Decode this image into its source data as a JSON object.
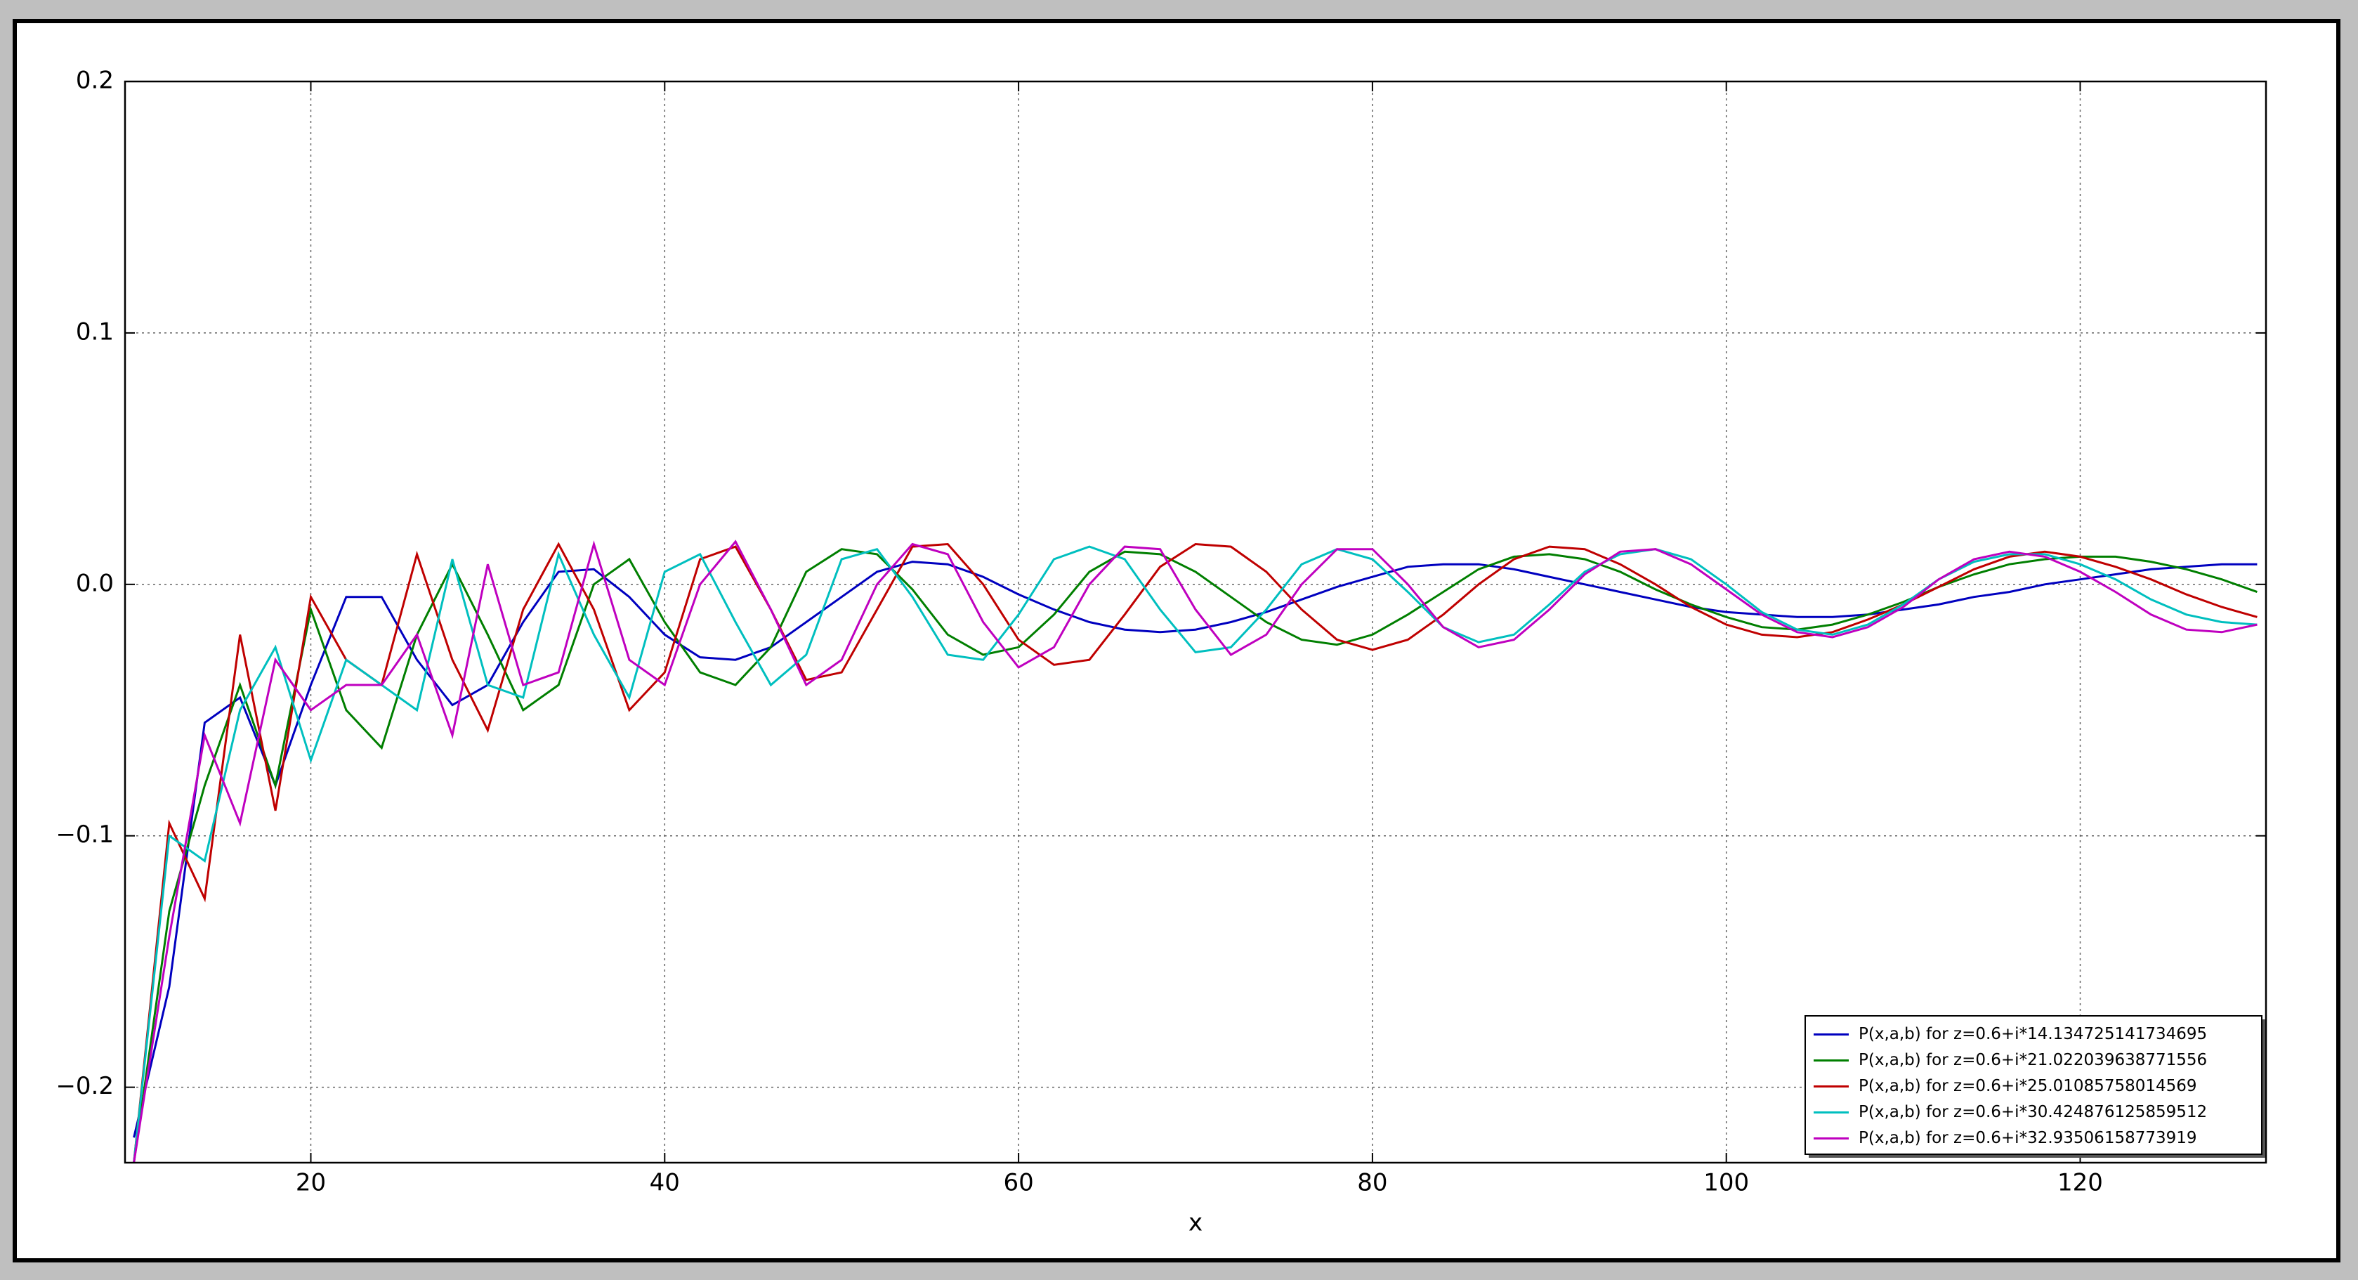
{
  "chart_data": {
    "type": "line",
    "x_label": "x",
    "x": [
      10,
      12,
      14,
      16,
      18,
      20,
      22,
      24,
      26,
      28,
      30,
      32,
      34,
      36,
      38,
      40,
      42,
      44,
      46,
      48,
      50,
      52,
      54,
      56,
      58,
      60,
      62,
      64,
      66,
      68,
      70,
      72,
      74,
      76,
      78,
      80,
      82,
      84,
      86,
      88,
      90,
      92,
      94,
      96,
      98,
      100,
      102,
      104,
      106,
      108,
      110,
      112,
      114,
      116,
      118,
      120,
      122,
      124,
      126,
      128,
      130
    ],
    "xlim": [
      9.5,
      130.5
    ],
    "xticks": [
      20,
      40,
      60,
      80,
      100,
      120
    ],
    "ylim": [
      -0.23,
      0.2
    ],
    "yticks": [
      {
        "value": -0.2,
        "label": "−0.2"
      },
      {
        "value": -0.1,
        "label": "−0.1"
      },
      {
        "value": 0,
        "label": "0.0"
      },
      0.1,
      0.2
    ],
    "grid": true,
    "legend_position": "lower right",
    "series": [
      {
        "name": "P(x,a,b) for z=0.6+i*14.134725141734695",
        "color": "#0000bf",
        "values": [
          -0.22,
          -0.16,
          -0.055,
          -0.045,
          -0.08,
          -0.04,
          -0.005,
          -0.005,
          -0.03,
          -0.048,
          -0.04,
          -0.015,
          0.005,
          0.006,
          -0.005,
          -0.02,
          -0.029,
          -0.03,
          -0.025,
          -0.015,
          -0.005,
          0.005,
          0.009,
          0.008,
          0.003,
          -0.004,
          -0.01,
          -0.015,
          -0.018,
          -0.019,
          -0.018,
          -0.015,
          -0.011,
          -0.006,
          -0.001,
          0.003,
          0.007,
          0.008,
          0.008,
          0.006,
          0.003,
          0,
          -0.003,
          -0.006,
          -0.009,
          -0.011,
          -0.012,
          -0.013,
          -0.013,
          -0.012,
          -0.01,
          -0.008,
          -0.005,
          -0.003,
          0,
          0.002,
          0.004,
          0.006,
          0.007,
          0.008,
          0.008
        ]
      },
      {
        "name": "P(x,a,b) for z=0.6+i*21.022039638771556",
        "color": "#007f00",
        "values": [
          -0.23,
          -0.13,
          -0.08,
          -0.04,
          -0.08,
          -0.01,
          -0.05,
          -0.065,
          -0.02,
          0.008,
          -0.02,
          -0.05,
          -0.04,
          0,
          0.01,
          -0.015,
          -0.035,
          -0.04,
          -0.025,
          0.005,
          0.014,
          0.012,
          -0.002,
          -0.02,
          -0.028,
          -0.025,
          -0.012,
          0.005,
          0.013,
          0.012,
          0.005,
          -0.005,
          -0.015,
          -0.022,
          -0.024,
          -0.02,
          -0.012,
          -0.003,
          0.006,
          0.011,
          0.012,
          0.01,
          0.005,
          -0.002,
          -0.008,
          -0.013,
          -0.017,
          -0.018,
          -0.016,
          -0.012,
          -0.007,
          -0.001,
          0.004,
          0.008,
          0.01,
          0.011,
          0.011,
          0.009,
          0.006,
          0.002,
          -0.003
        ]
      },
      {
        "name": "P(x,a,b) for z=0.6+i*25.01085758014569",
        "color": "#bf0000",
        "values": [
          -0.23,
          -0.095,
          -0.125,
          -0.02,
          -0.09,
          -0.005,
          -0.03,
          -0.04,
          0.012,
          -0.03,
          -0.058,
          -0.01,
          0.016,
          -0.01,
          -0.05,
          -0.035,
          0.01,
          0.015,
          -0.01,
          -0.038,
          -0.035,
          -0.01,
          0.015,
          0.016,
          0,
          -0.022,
          -0.032,
          -0.03,
          -0.012,
          0.007,
          0.016,
          0.015,
          0.005,
          -0.01,
          -0.022,
          -0.026,
          -0.022,
          -0.012,
          0,
          0.01,
          0.015,
          0.014,
          0.008,
          0,
          -0.009,
          -0.016,
          -0.02,
          -0.021,
          -0.019,
          -0.014,
          -0.008,
          -0.001,
          0.006,
          0.011,
          0.013,
          0.011,
          0.007,
          0.002,
          -0.004,
          -0.009,
          -0.013
        ]
      },
      {
        "name": "P(x,a,b) for z=0.6+i*30.424876125859512",
        "color": "#00bfbf",
        "values": [
          -0.23,
          -0.1,
          -0.11,
          -0.05,
          -0.025,
          -0.07,
          -0.03,
          -0.04,
          -0.05,
          0.01,
          -0.04,
          -0.045,
          0.012,
          -0.02,
          -0.045,
          0.005,
          0.012,
          -0.015,
          -0.04,
          -0.028,
          0.01,
          0.014,
          -0.005,
          -0.028,
          -0.03,
          -0.012,
          0.01,
          0.015,
          0.01,
          -0.01,
          -0.027,
          -0.025,
          -0.01,
          0.008,
          0.014,
          0.01,
          -0.003,
          -0.017,
          -0.023,
          -0.02,
          -0.008,
          0.005,
          0.012,
          0.014,
          0.01,
          0,
          -0.011,
          -0.018,
          -0.02,
          -0.016,
          -0.008,
          0.002,
          0.009,
          0.012,
          0.012,
          0.008,
          0.002,
          -0.006,
          -0.012,
          -0.015,
          -0.016
        ]
      },
      {
        "name": "P(x,a,b) for z=0.6+i*32.93506158773919",
        "color": "#bf00bf",
        "values": [
          -0.23,
          -0.14,
          -0.06,
          -0.095,
          -0.03,
          -0.05,
          -0.04,
          -0.04,
          -0.02,
          -0.06,
          0.008,
          -0.04,
          -0.035,
          0.016,
          -0.03,
          -0.04,
          0,
          0.017,
          -0.01,
          -0.04,
          -0.03,
          0,
          0.016,
          0.012,
          -0.015,
          -0.033,
          -0.025,
          0,
          0.015,
          0.014,
          -0.01,
          -0.028,
          -0.02,
          0,
          0.014,
          0.014,
          0,
          -0.017,
          -0.025,
          -0.022,
          -0.01,
          0.004,
          0.013,
          0.014,
          0.008,
          -0.002,
          -0.012,
          -0.019,
          -0.021,
          -0.017,
          -0.009,
          0.002,
          0.01,
          0.013,
          0.011,
          0.005,
          -0.003,
          -0.012,
          -0.018,
          -0.019,
          -0.016
        ]
      }
    ]
  }
}
